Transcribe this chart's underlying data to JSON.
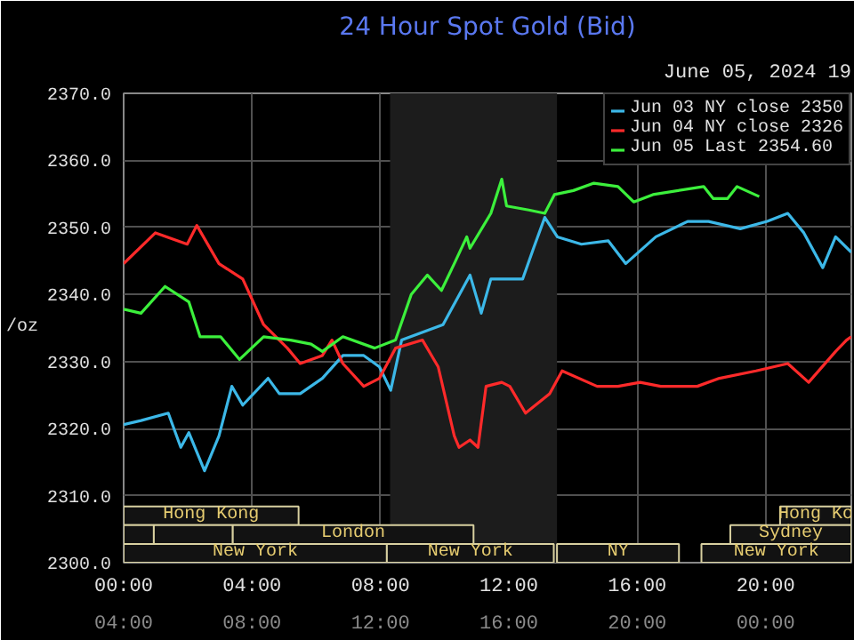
{
  "chart_data": {
    "type": "line",
    "title": "24 Hour Spot Gold (Bid)",
    "ylabel": "/oz",
    "annotations": [
      "June 05, 2024 19"
    ],
    "xlim": [
      0,
      22.67
    ],
    "xticks": [
      {
        "value": 0,
        "label": "00:00"
      },
      {
        "value": 4,
        "label": "04:00"
      },
      {
        "value": 8,
        "label": "08:00"
      },
      {
        "value": 12,
        "label": "12:00"
      },
      {
        "value": 16,
        "label": "16:00"
      },
      {
        "value": 20,
        "label": "20:00"
      }
    ],
    "x2lim": [
      4,
      26.67
    ],
    "x2ticks": [
      {
        "value": 4,
        "label": "04:00"
      },
      {
        "value": 8,
        "label": "08:00"
      },
      {
        "value": 12,
        "label": "12:00"
      },
      {
        "value": 16,
        "label": "16:00"
      },
      {
        "value": 20,
        "label": "20:00"
      },
      {
        "value": 24,
        "label": "00:00"
      }
    ],
    "ylim": [
      2300,
      2370
    ],
    "yticks": [
      {
        "value": 2300,
        "label": "2300.0"
      },
      {
        "value": 2310,
        "label": "2310.0"
      },
      {
        "value": 2320,
        "label": "2320.0"
      },
      {
        "value": 2330,
        "label": "2330.0"
      },
      {
        "value": 2340,
        "label": "2340.0"
      },
      {
        "value": 2350,
        "label": "2350.0"
      },
      {
        "value": 2360,
        "label": "2360.0"
      },
      {
        "value": 2370,
        "label": "2370.0"
      }
    ],
    "grid": true,
    "legend": "top right",
    "bands": [
      {
        "axis": "x",
        "from": 8.3,
        "to": 13.5,
        "color": "#1c1c1c"
      },
      {
        "axis": "x",
        "from": 0,
        "to": 5.45,
        "label": "Hong Kong"
      },
      {
        "axis": "x",
        "from": 20.45,
        "to": 22.67,
        "label": "Hong Ko"
      },
      {
        "axis": "x",
        "from": 0,
        "to": 0.94
      },
      {
        "axis": "x",
        "from": 0.94,
        "to": 3.4
      },
      {
        "axis": "x",
        "from": 3.4,
        "to": 10.9,
        "label": "London"
      },
      {
        "axis": "x",
        "from": 18.9,
        "to": 22.67,
        "label": "Sydney"
      },
      {
        "axis": "x",
        "from": 0,
        "to": 8.2,
        "label": "New York"
      },
      {
        "axis": "x",
        "from": 8.2,
        "to": 13.4,
        "label": "New York"
      },
      {
        "axis": "x",
        "from": 13.5,
        "to": 17.3,
        "label": "NY"
      },
      {
        "axis": "x",
        "from": 18,
        "to": 22.67,
        "label": "New York"
      }
    ],
    "series": [
      {
        "name": "Jun 03 NY close 2350",
        "color": "#3cb8e8",
        "x": [
          0,
          0.54,
          1.39,
          1.78,
          2.03,
          2.52,
          2.97,
          3.37,
          3.71,
          4.5,
          4.85,
          5.5,
          6.19,
          6.83,
          7.48,
          7.97,
          8.32,
          8.66,
          9.95,
          10.79,
          11.14,
          11.44,
          12.43,
          12.77,
          13.12,
          13.51,
          14.26,
          15.1,
          15.64,
          16.58,
          17.57,
          18.22,
          19.21,
          20.05,
          20.69,
          21.19,
          21.78,
          22.18,
          22.67
        ],
        "values": [
          2320.6,
          2321.2,
          2322.3,
          2317.2,
          2319.4,
          2313.7,
          2318.9,
          2326.3,
          2323.5,
          2327.5,
          2325.2,
          2325.2,
          2327.5,
          2330.9,
          2330.9,
          2329.2,
          2325.7,
          2333.2,
          2335.5,
          2342.9,
          2337.2,
          2342.3,
          2342.3,
          2346.9,
          2351.5,
          2348.6,
          2347.5,
          2348.0,
          2344.6,
          2348.6,
          2350.9,
          2350.9,
          2349.8,
          2350.9,
          2352.1,
          2349.2,
          2344.0,
          2348.6,
          2346.3
        ]
      },
      {
        "name": "Jun 04 NY close 2326",
        "color": "#ff2a2a",
        "x": [
          0,
          0.99,
          1.98,
          2.28,
          2.97,
          3.71,
          4.36,
          5.1,
          5.5,
          6.19,
          6.49,
          6.83,
          7.48,
          7.97,
          8.47,
          9.31,
          9.8,
          10.3,
          10.45,
          10.79,
          11.04,
          11.29,
          11.78,
          12.03,
          12.52,
          13.27,
          13.66,
          14.75,
          15.4,
          16.09,
          16.73,
          17.87,
          18.56,
          19.7,
          20.69,
          21.34,
          22.18,
          22.52,
          22.67
        ],
        "values": [
          2344.6,
          2349.2,
          2347.5,
          2350.3,
          2344.6,
          2342.3,
          2335.5,
          2332.0,
          2329.7,
          2330.9,
          2333.2,
          2329.7,
          2326.3,
          2327.5,
          2332.0,
          2333.2,
          2329.2,
          2318.9,
          2317.2,
          2318.3,
          2317.2,
          2326.3,
          2326.9,
          2326.3,
          2322.3,
          2325.2,
          2328.6,
          2326.3,
          2326.3,
          2326.9,
          2326.3,
          2326.3,
          2327.5,
          2328.6,
          2329.7,
          2326.9,
          2331.5,
          2333.2,
          2333.7
        ]
      },
      {
        "name": "Jun 05 Last 2354.60",
        "color": "#3cf03c",
        "x": [
          0,
          0.54,
          1.29,
          2.03,
          2.38,
          3.02,
          3.61,
          4.36,
          5.2,
          5.84,
          6.19,
          6.83,
          7.82,
          8.47,
          8.96,
          9.46,
          9.9,
          10.3,
          10.69,
          10.79,
          11.44,
          11.78,
          11.93,
          12.62,
          13.12,
          13.42,
          14.01,
          14.65,
          15.4,
          15.89,
          16.49,
          18.07,
          18.37,
          18.81,
          19.11,
          19.8
        ],
        "values": [
          2337.8,
          2337.2,
          2341.2,
          2338.9,
          2333.7,
          2333.7,
          2330.3,
          2333.7,
          2333.2,
          2332.6,
          2331.5,
          2333.7,
          2332.0,
          2333.2,
          2340.0,
          2342.9,
          2340.6,
          2344.6,
          2348.6,
          2346.9,
          2352.1,
          2357.2,
          2353.2,
          2352.6,
          2352.1,
          2354.9,
          2355.5,
          2356.6,
          2356.1,
          2353.8,
          2354.9,
          2356.1,
          2354.3,
          2354.3,
          2356.1,
          2354.6
        ]
      }
    ]
  }
}
